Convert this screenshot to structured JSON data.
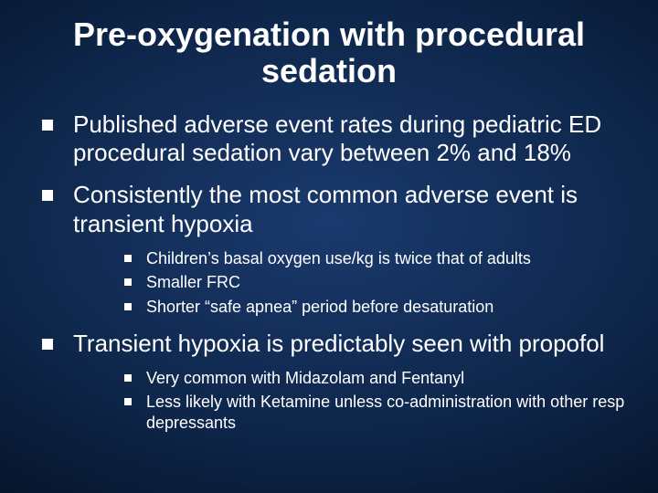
{
  "title": "Pre-oxygenation with procedural sedation",
  "bullets": [
    {
      "text": "Published adverse event rates during  pediatric ED procedural sedation vary between 2% and 18%",
      "sub": []
    },
    {
      "text": "Consistently the most common adverse event is transient hypoxia",
      "sub": [
        "Children’s basal oxygen use/kg is twice that of adults",
        "Smaller FRC",
        "Shorter “safe apnea” period before desaturation"
      ]
    },
    {
      "text": "Transient hypoxia is predictably seen with propofol",
      "sub": [
        "Very common with Midazolam and Fentanyl",
        "Less likely with Ketamine unless co-administration with other resp depressants"
      ]
    }
  ],
  "style": {
    "background_gradient": [
      "#1a3a6e",
      "#0d2548",
      "#030a1a",
      "#000000"
    ],
    "text_color": "#ffffff",
    "bullet_color": "#ffffff",
    "title_fontsize": 36,
    "level1_fontsize": 26,
    "level2_fontsize": 18,
    "font_family": "Arial"
  }
}
